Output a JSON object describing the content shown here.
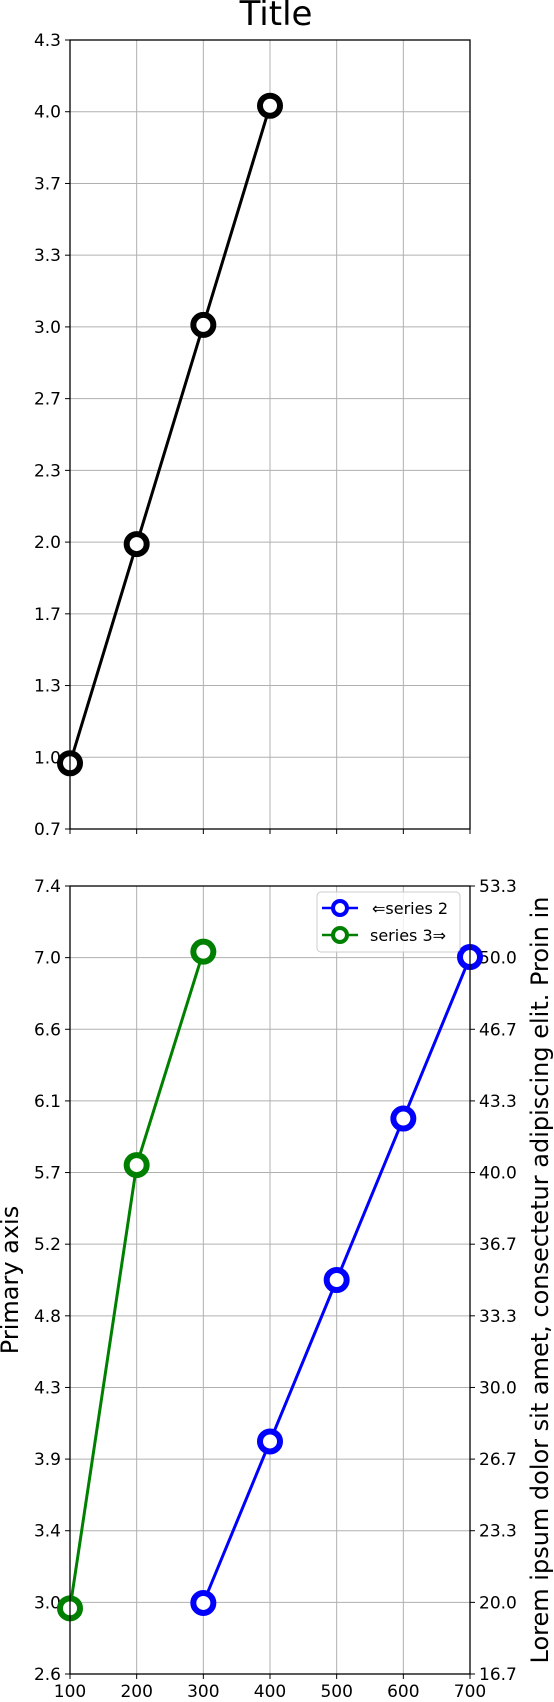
{
  "chart_data": [
    {
      "type": "line",
      "title": "Title",
      "xlim": [
        100,
        700
      ],
      "ylim": [
        0.7,
        4.3
      ],
      "xticks": [
        "100",
        "200",
        "300",
        "400",
        "500",
        "600",
        "700"
      ],
      "yticks": [
        "0.7",
        "1.0",
        "1.3",
        "1.7",
        "2.0",
        "2.3",
        "2.7",
        "3.0",
        "3.3",
        "3.7",
        "4.0",
        "4.3"
      ],
      "show_xtick_labels": false,
      "grid": true,
      "series": [
        {
          "color": "#000000",
          "x": [
            100,
            200,
            300,
            400
          ],
          "y": [
            1.0,
            2.0,
            3.0,
            4.0
          ]
        }
      ]
    },
    {
      "type": "line",
      "xlim": [
        100,
        700
      ],
      "ylim": [
        2.6,
        7.4
      ],
      "ylim_secondary": [
        16.7,
        53.3
      ],
      "ylabel": "Primary axis",
      "ylabel_secondary": "Lorem ipsum dolor sit amet, consectetur adipiscing elit. Proin in",
      "xticks": [
        "100",
        "200",
        "300",
        "400",
        "500",
        "600",
        "700"
      ],
      "yticks": [
        "2.6",
        "3.0",
        "3.4",
        "3.9",
        "4.3",
        "4.8",
        "5.2",
        "5.7",
        "6.1",
        "6.6",
        "7.0",
        "7.4"
      ],
      "yticks_secondary": [
        "16.7",
        "20.0",
        "23.3",
        "26.7",
        "30.0",
        "33.3",
        "36.7",
        "40.0",
        "43.3",
        "46.7",
        "50.0",
        "53.3"
      ],
      "grid": true,
      "legend": "top-right",
      "series": [
        {
          "name": "⇐series 2",
          "color": "#0000ff",
          "axis": "secondary",
          "x": [
            300,
            400,
            500,
            600,
            700
          ],
          "y": [
            20,
            27.5,
            35,
            42.5,
            50
          ]
        },
        {
          "name": "series 3⇒",
          "color": "#008000",
          "axis": "primary",
          "x": [
            100,
            200,
            300
          ],
          "y": [
            3.0,
            5.7,
            7.0
          ]
        }
      ]
    }
  ]
}
